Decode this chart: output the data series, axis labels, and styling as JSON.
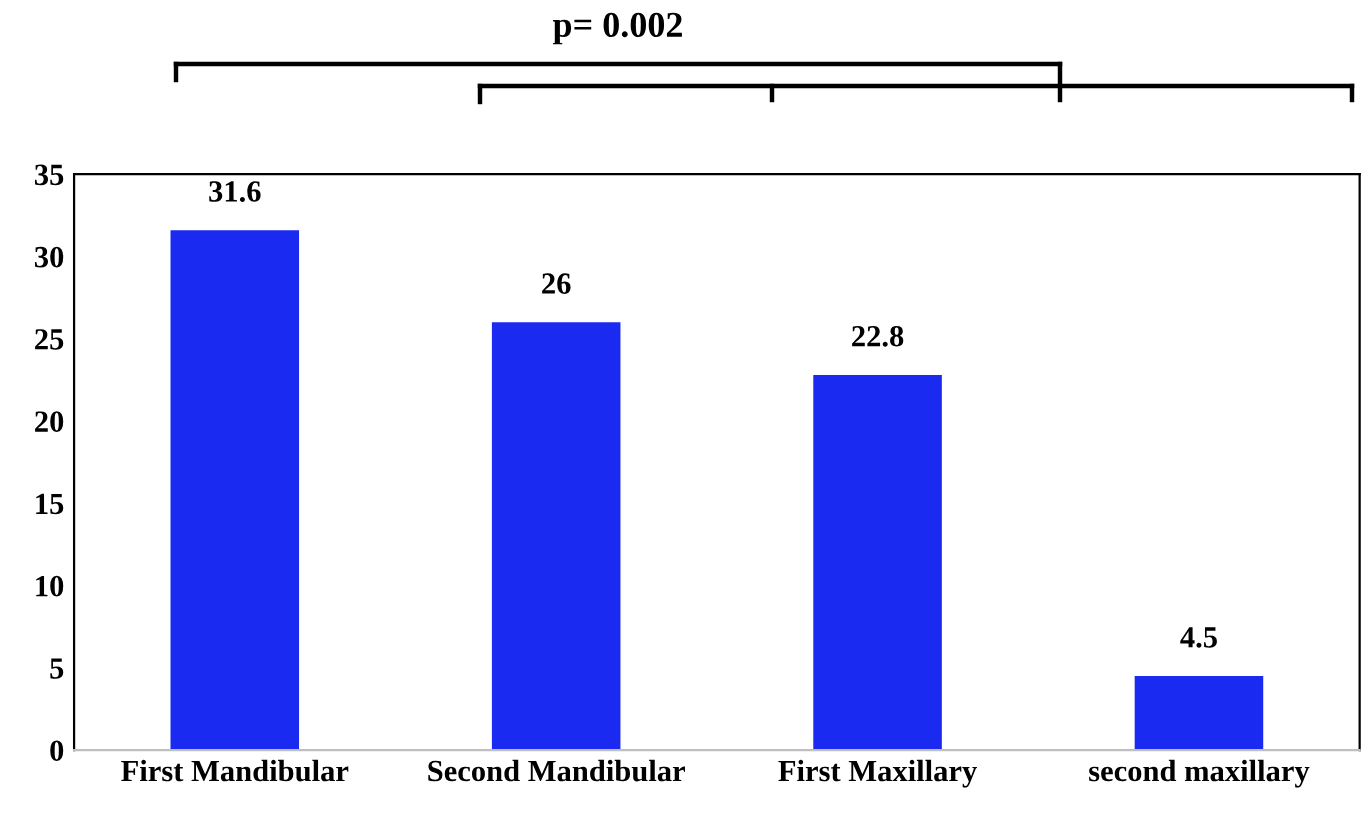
{
  "chart_data": {
    "type": "bar",
    "categories": [
      "First Mandibular",
      "Second Mandibular",
      "First Maxillary",
      "second maxillary"
    ],
    "values": [
      31.6,
      26,
      22.8,
      4.5
    ],
    "value_labels": [
      "31.6",
      "26",
      "22.8",
      "4.5"
    ],
    "color": "#1a2af0",
    "ylim": [
      0,
      35
    ],
    "yticks": [
      0,
      5,
      10,
      15,
      20,
      25,
      30,
      35
    ],
    "grid": false,
    "legend": false,
    "annotations": [
      "p= 0.002"
    ]
  }
}
